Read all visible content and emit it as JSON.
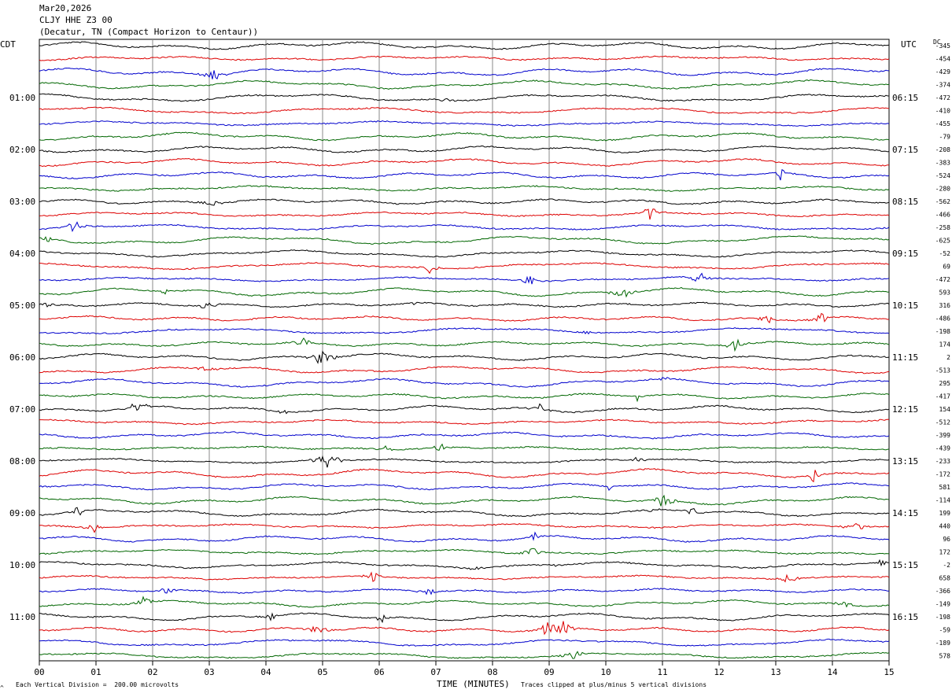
{
  "header": {
    "date": "Mar20,2026",
    "station": "CLJY HHE Z3 00",
    "location": "(Decatur, TN (Compact Horizon to Centaur))"
  },
  "axis": {
    "left_tz": "CDT",
    "right_tz": "UTC",
    "dc_label": "DC",
    "xlabel": "TIME (MINUTES)",
    "scale_note": "Each Vertical Division =  200.00 microvolts",
    "clip_note": "Traces clipped at plus/minus 5 vertical divisions",
    "corner_mark": "^"
  },
  "chart_data": {
    "type": "line",
    "title": "CLJY HHE Z3 00",
    "xlabel": "TIME (MINUTES)",
    "xlim": [
      0,
      15
    ],
    "x_ticks": [
      "00",
      "01",
      "02",
      "03",
      "04",
      "05",
      "06",
      "07",
      "08",
      "09",
      "10",
      "11",
      "12",
      "13",
      "14",
      "15"
    ],
    "left_hour_labels": [
      "01:00",
      "02:00",
      "03:00",
      "04:00",
      "05:00",
      "06:00",
      "07:00",
      "08:00",
      "09:00",
      "10:00",
      "11:00"
    ],
    "right_hour_labels": [
      "06:15",
      "07:15",
      "08:15",
      "09:15",
      "10:15",
      "11:15",
      "12:15",
      "13:15",
      "14:15",
      "15:15",
      "16:15"
    ],
    "trace_colors": [
      "#000000",
      "#dd0000",
      "#0000cc",
      "#006600"
    ],
    "dc_offsets": [
      "-345",
      "-454",
      "-429",
      "-374",
      "-472",
      "-410",
      "-455",
      "-79",
      "-208",
      "-383",
      "-524",
      "-280",
      "-562",
      "-466",
      "-258",
      "-625",
      "-52",
      "69",
      "-472",
      "593",
      "316",
      "-486",
      "-198",
      "174",
      "2",
      "-513",
      "295",
      "-417",
      "154",
      "-512",
      "-399",
      "-439",
      "-233",
      "-172",
      "581",
      "-114",
      "199",
      "440",
      "96",
      "172",
      "-2",
      "658",
      "-366",
      "-149",
      "-198",
      "-59",
      "-189",
      "578"
    ],
    "grid": true,
    "traces_per_hour": 4,
    "minutes_per_trace": 15
  }
}
